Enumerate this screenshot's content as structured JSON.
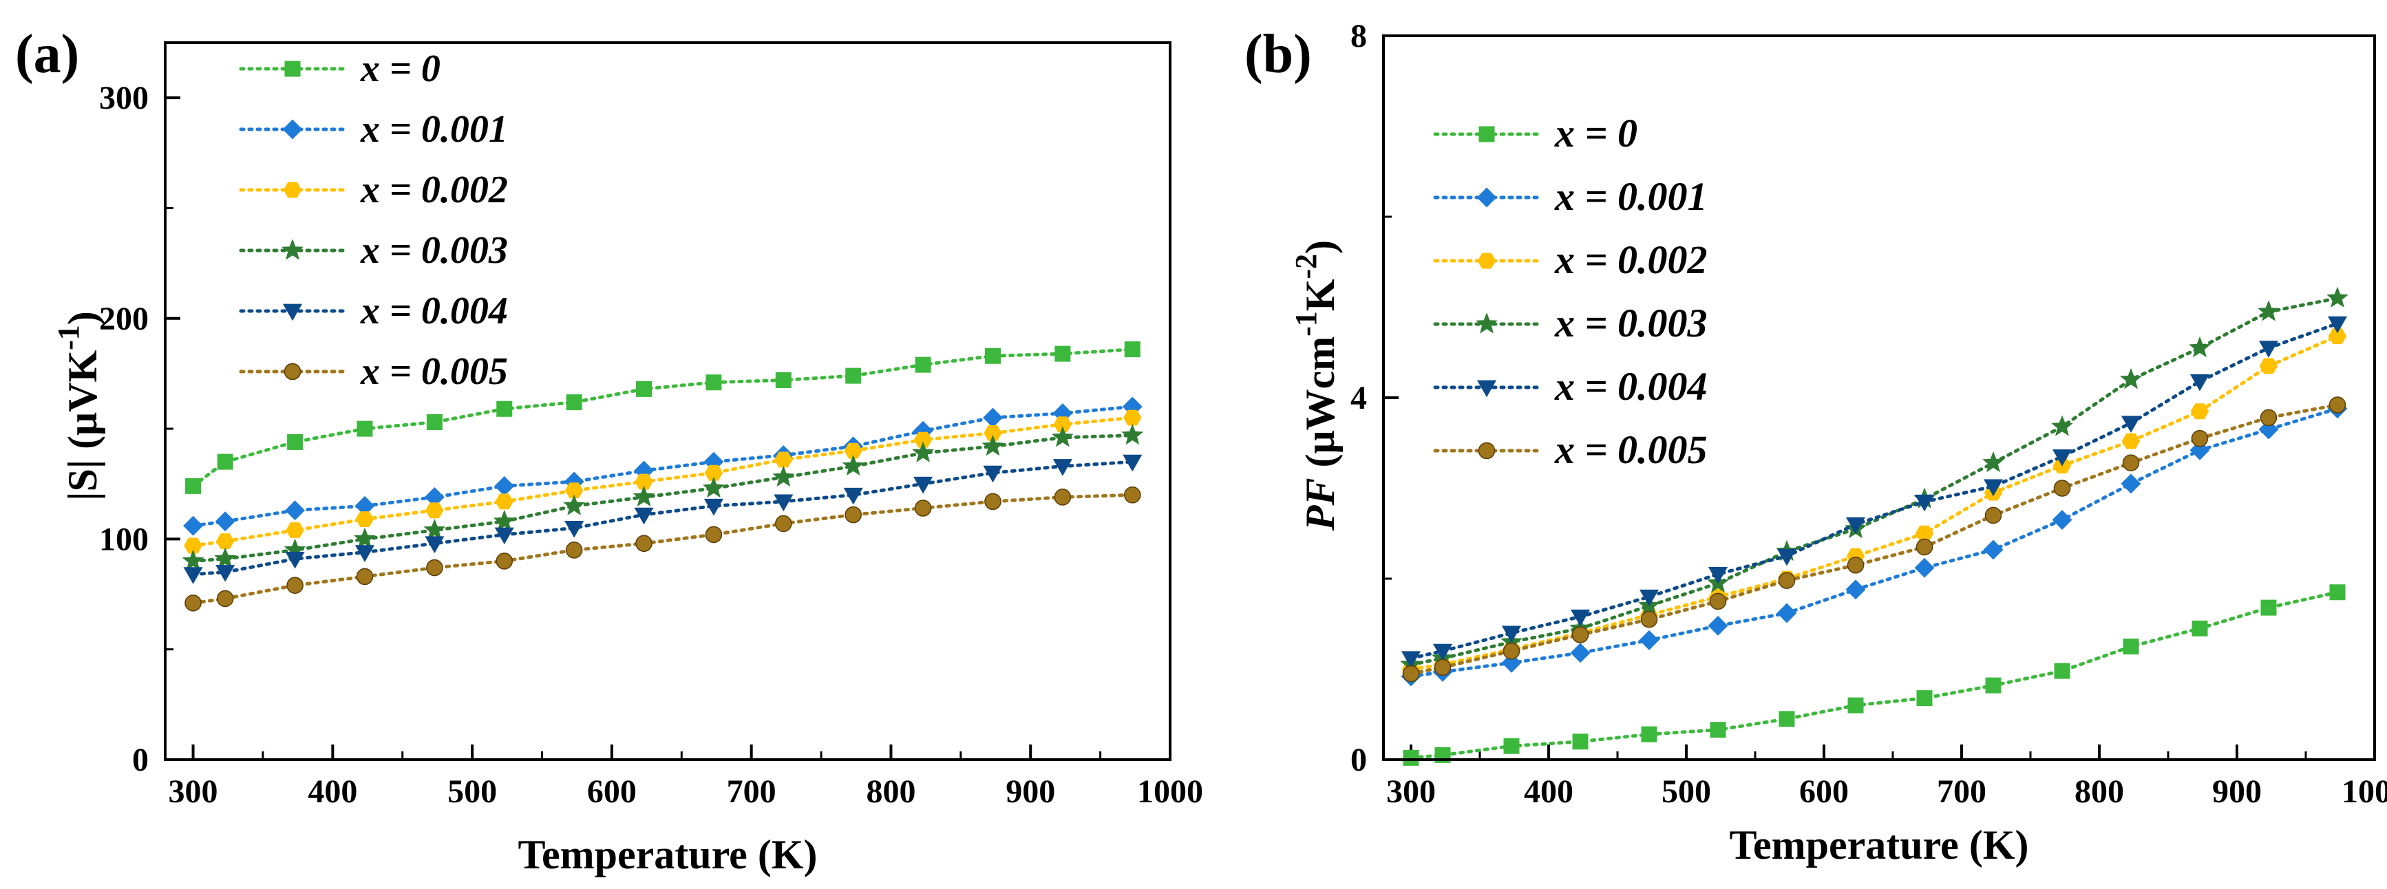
{
  "chart_data": [
    {
      "type": "line",
      "panel_label": "(a)",
      "title": "",
      "xlabel": "Temperature (K)",
      "ylabel_main": "|S| (μVK",
      "ylabel_sup": "-1",
      "ylabel_close": ")",
      "xlim": [
        280,
        1000
      ],
      "ylim": [
        0,
        325
      ],
      "xticks": [
        300,
        400,
        500,
        600,
        700,
        800,
        900,
        1000
      ],
      "yticks": [
        0,
        100,
        200,
        300
      ],
      "legend_position": "top-left",
      "x": [
        300,
        323,
        373,
        423,
        473,
        523,
        573,
        623,
        673,
        723,
        773,
        823,
        873,
        923,
        973
      ],
      "series": [
        {
          "name": "x = 0",
          "color": "#3cb93c",
          "marker": "square",
          "values": [
            124,
            135,
            144,
            150,
            153,
            159,
            162,
            168,
            171,
            172,
            174,
            179,
            183,
            184,
            186
          ]
        },
        {
          "name": "x = 0.001",
          "color": "#1f7bd8",
          "marker": "diamond",
          "values": [
            106,
            108,
            113,
            115,
            119,
            124,
            126,
            131,
            135,
            138,
            142,
            149,
            155,
            157,
            160
          ]
        },
        {
          "name": "x = 0.002",
          "color": "#ffc000",
          "marker": "hexagon",
          "values": [
            97,
            99,
            104,
            109,
            113,
            117,
            122,
            126,
            130,
            136,
            140,
            145,
            148,
            152,
            155
          ]
        },
        {
          "name": "x = 0.003",
          "color": "#2e7d32",
          "marker": "star",
          "values": [
            90,
            91,
            95,
            100,
            104,
            108,
            115,
            119,
            123,
            128,
            133,
            139,
            142,
            146,
            147
          ]
        },
        {
          "name": "x = 0.004",
          "color": "#0d4a8a",
          "marker": "triangle-down",
          "values": [
            84,
            85,
            91,
            94,
            98,
            102,
            105,
            111,
            115,
            117,
            120,
            125,
            130,
            133,
            135
          ]
        },
        {
          "name": "x = 0.005",
          "color": "#a0761c",
          "marker": "circle",
          "values": [
            71,
            73,
            79,
            83,
            87,
            90,
            95,
            98,
            102,
            107,
            111,
            114,
            117,
            119,
            120
          ]
        }
      ]
    },
    {
      "type": "line",
      "panel_label": "(b)",
      "title": "",
      "xlabel": "Temperature (K)",
      "ylabel_main": "PF",
      "ylabel_unit": " (μWcm",
      "ylabel_sup1": "-1",
      "ylabel_mid": "K",
      "ylabel_sup2": "-2",
      "ylabel_close": ")",
      "xlim": [
        280,
        1000
      ],
      "ylim": [
        0,
        8
      ],
      "xticks": [
        300,
        400,
        500,
        600,
        700,
        800,
        900,
        1000
      ],
      "yticks": [
        0,
        4,
        8
      ],
      "legend_position": "top-left",
      "x": [
        300,
        323,
        373,
        423,
        473,
        523,
        573,
        623,
        673,
        723,
        773,
        823,
        873,
        923,
        973
      ],
      "series": [
        {
          "name": "x = 0",
          "color": "#3cb93c",
          "marker": "square",
          "values": [
            0.02,
            0.05,
            0.15,
            0.2,
            0.28,
            0.33,
            0.45,
            0.6,
            0.68,
            0.82,
            0.98,
            1.25,
            1.45,
            1.68,
            1.85
          ]
        },
        {
          "name": "x = 0.001",
          "color": "#1f7bd8",
          "marker": "diamond",
          "values": [
            0.92,
            0.97,
            1.07,
            1.18,
            1.32,
            1.48,
            1.62,
            1.88,
            2.12,
            2.32,
            2.65,
            3.05,
            3.42,
            3.65,
            3.88
          ]
        },
        {
          "name": "x = 0.002",
          "color": "#ffc000",
          "marker": "hexagon",
          "values": [
            1.0,
            1.05,
            1.22,
            1.4,
            1.6,
            1.8,
            2.0,
            2.25,
            2.5,
            2.95,
            3.25,
            3.52,
            3.85,
            4.35,
            4.68
          ]
        },
        {
          "name": "x = 0.003",
          "color": "#2e7d32",
          "marker": "star",
          "values": [
            1.05,
            1.12,
            1.3,
            1.45,
            1.7,
            1.95,
            2.3,
            2.55,
            2.88,
            3.28,
            3.68,
            4.2,
            4.55,
            4.95,
            5.1
          ]
        },
        {
          "name": "x = 0.004",
          "color": "#0d4a8a",
          "marker": "triangle-down",
          "values": [
            1.12,
            1.2,
            1.4,
            1.58,
            1.8,
            2.05,
            2.25,
            2.6,
            2.85,
            3.02,
            3.35,
            3.72,
            4.18,
            4.55,
            4.82
          ]
        },
        {
          "name": "x = 0.005",
          "color": "#a0761c",
          "marker": "circle",
          "values": [
            0.95,
            1.02,
            1.2,
            1.38,
            1.55,
            1.75,
            1.98,
            2.15,
            2.35,
            2.7,
            3.0,
            3.28,
            3.55,
            3.78,
            3.92
          ]
        }
      ]
    }
  ]
}
